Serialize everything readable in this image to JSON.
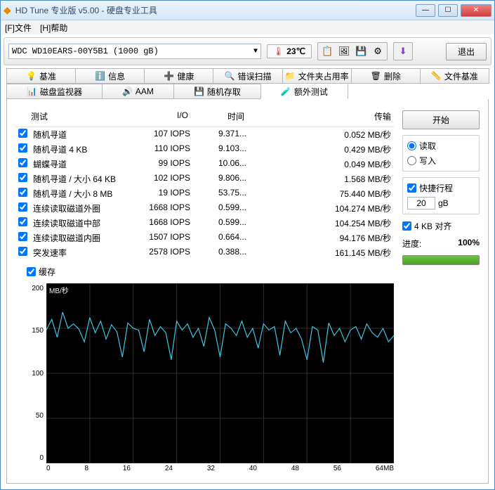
{
  "window": {
    "title": "HD Tune 专业版 v5.00 - 硬盘专业工具",
    "icon": "◆"
  },
  "menu": {
    "file": "[F]文件",
    "help": "[H]帮助"
  },
  "toolbar": {
    "drive": "WDC WD10EARS-00Y5B1 (1000 gB)",
    "temp_value": "23℃",
    "exit_label": "退出"
  },
  "tabs_row1": [
    {
      "icon": "💡",
      "label": "基准"
    },
    {
      "icon": "ℹ️",
      "label": "信息"
    },
    {
      "icon": "➕",
      "label": "健康"
    },
    {
      "icon": "🔍",
      "label": "错误扫描"
    },
    {
      "icon": "📁",
      "label": "文件夹占用率"
    },
    {
      "icon": "🗑",
      "label": "删除"
    },
    {
      "icon": "📏",
      "label": "文件基准"
    }
  ],
  "tabs_row2": [
    {
      "icon": "📊",
      "label": "磁盘监视器"
    },
    {
      "icon": "🔊",
      "label": "AAM"
    },
    {
      "icon": "💾",
      "label": "随机存取"
    },
    {
      "icon": "🧪",
      "label": "额外测试",
      "active": true
    }
  ],
  "table": {
    "headers": {
      "test": "测试",
      "io": "I/O",
      "time": "时间",
      "xfer": "传输"
    },
    "rows": [
      {
        "name": "随机寻道",
        "io": "107 IOPS",
        "time": "9.371...",
        "xfer": "0.052 MB/秒"
      },
      {
        "name": "随机寻道 4 KB",
        "io": "110 IOPS",
        "time": "9.103...",
        "xfer": "0.429 MB/秒"
      },
      {
        "name": "蝴蝶寻道",
        "io": "99 IOPS",
        "time": "10.06...",
        "xfer": "0.049 MB/秒"
      },
      {
        "name": "随机寻道 / 大小 64 KB",
        "io": "102 IOPS",
        "time": "9.806...",
        "xfer": "1.568 MB/秒"
      },
      {
        "name": "随机寻道 / 大小 8 MB",
        "io": "19 IOPS",
        "time": "53.75...",
        "xfer": "75.440 MB/秒"
      },
      {
        "name": "连续读取磁道外圈",
        "io": "1668 IOPS",
        "time": "0.599...",
        "xfer": "104.274 MB/秒"
      },
      {
        "name": "连续读取磁道中部",
        "io": "1668 IOPS",
        "time": "0.599...",
        "xfer": "104.254 MB/秒"
      },
      {
        "name": "连续读取磁道内圈",
        "io": "1507 IOPS",
        "time": "0.664...",
        "xfer": "94.176 MB/秒"
      },
      {
        "name": "突发速率",
        "io": "2578 IOPS",
        "time": "0.388...",
        "xfer": "161.145 MB/秒"
      }
    ]
  },
  "side": {
    "start_label": "开始",
    "read_label": "读取",
    "write_label": "写入",
    "quick_label": "快捷行程",
    "quick_value": "20",
    "quick_unit": "gB",
    "align_label": "4 KB 对齐",
    "progress_label": "进度:",
    "progress_value": "100%"
  },
  "cache_label": "缓存",
  "chart": {
    "ylabel": "MB/秒",
    "ymax": 200,
    "ymin": 0,
    "ystep": 50,
    "yticks": [
      "200",
      "150",
      "100",
      "50",
      "0"
    ],
    "xticks": [
      "0",
      "8",
      "16",
      "24",
      "32",
      "40",
      "48",
      "56",
      "64MB"
    ],
    "line_color": "#40c8e8",
    "bg": "#000000",
    "grid": "#303030",
    "points": [
      [
        0,
        148
      ],
      [
        1,
        160
      ],
      [
        2,
        140
      ],
      [
        3,
        168
      ],
      [
        4,
        150
      ],
      [
        5,
        155
      ],
      [
        6,
        149
      ],
      [
        7,
        135
      ],
      [
        8,
        162
      ],
      [
        9,
        145
      ],
      [
        10,
        158
      ],
      [
        11,
        138
      ],
      [
        12,
        154
      ],
      [
        13,
        146
      ],
      [
        14,
        118
      ],
      [
        15,
        156
      ],
      [
        16,
        150
      ],
      [
        17,
        148
      ],
      [
        18,
        124
      ],
      [
        19,
        160
      ],
      [
        20,
        142
      ],
      [
        21,
        152
      ],
      [
        22,
        145
      ],
      [
        23,
        115
      ],
      [
        24,
        158
      ],
      [
        25,
        148
      ],
      [
        26,
        155
      ],
      [
        27,
        140
      ],
      [
        28,
        150
      ],
      [
        29,
        130
      ],
      [
        30,
        162
      ],
      [
        31,
        148
      ],
      [
        32,
        118
      ],
      [
        33,
        155
      ],
      [
        34,
        150
      ],
      [
        35,
        142
      ],
      [
        36,
        158
      ],
      [
        37,
        140
      ],
      [
        38,
        150
      ],
      [
        39,
        128
      ],
      [
        40,
        155
      ],
      [
        41,
        148
      ],
      [
        42,
        152
      ],
      [
        43,
        120
      ],
      [
        44,
        158
      ],
      [
        45,
        145
      ],
      [
        46,
        150
      ],
      [
        47,
        138
      ],
      [
        48,
        115
      ],
      [
        49,
        152
      ],
      [
        50,
        148
      ],
      [
        51,
        112
      ],
      [
        52,
        156
      ],
      [
        53,
        142
      ],
      [
        54,
        150
      ],
      [
        55,
        135
      ],
      [
        56,
        148
      ],
      [
        57,
        152
      ],
      [
        58,
        138
      ],
      [
        59,
        155
      ],
      [
        60,
        145
      ],
      [
        61,
        140
      ],
      [
        62,
        150
      ],
      [
        63,
        135
      ],
      [
        64,
        142
      ]
    ]
  }
}
